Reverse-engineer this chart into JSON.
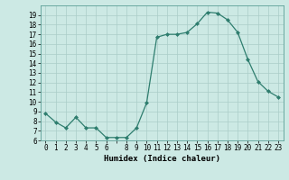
{
  "x": [
    0,
    1,
    2,
    3,
    4,
    5,
    6,
    7,
    8,
    9,
    10,
    11,
    12,
    13,
    14,
    15,
    16,
    17,
    18,
    19,
    20,
    21,
    22,
    23
  ],
  "y": [
    8.8,
    7.9,
    7.3,
    8.4,
    7.3,
    7.3,
    6.3,
    6.3,
    6.3,
    7.3,
    9.9,
    16.7,
    17.0,
    17.0,
    17.2,
    18.1,
    19.3,
    19.2,
    18.5,
    17.2,
    14.4,
    12.1,
    11.1,
    10.5
  ],
  "line_color": "#2e7d6e",
  "marker": "D",
  "marker_size": 2.0,
  "bg_color": "#cce9e4",
  "grid_color": "#aacdc8",
  "xlabel": "Humidex (Indice chaleur)",
  "ylim": [
    6,
    20
  ],
  "xlim": [
    -0.5,
    23.5
  ],
  "yticks": [
    6,
    7,
    8,
    9,
    10,
    11,
    12,
    13,
    14,
    15,
    16,
    17,
    18,
    19
  ],
  "xtick_labels": [
    "0",
    "1",
    "2",
    "3",
    "4",
    "5",
    "6",
    "",
    "8",
    "9",
    "10",
    "11",
    "12",
    "13",
    "14",
    "15",
    "16",
    "17",
    "18",
    "19",
    "20",
    "21",
    "22",
    "23"
  ],
  "xtick_positions": [
    0,
    1,
    2,
    3,
    4,
    5,
    6,
    7,
    8,
    9,
    10,
    11,
    12,
    13,
    14,
    15,
    16,
    17,
    18,
    19,
    20,
    21,
    22,
    23
  ],
  "tick_fontsize": 5.5,
  "xlabel_fontsize": 6.5,
  "line_width": 0.9
}
